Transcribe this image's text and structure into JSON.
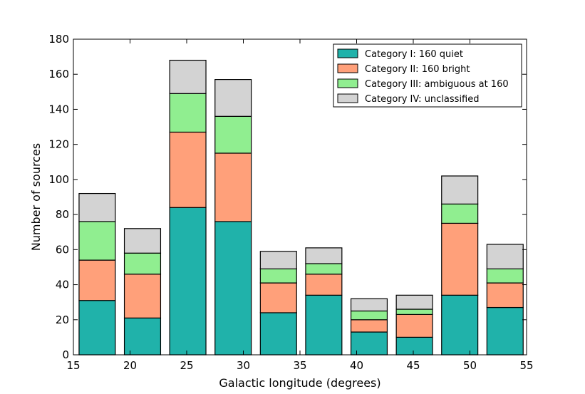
{
  "chart_data": {
    "type": "bar",
    "stacked": true,
    "xlabel": "Galactic longitude (degrees)",
    "ylabel": "Number of sources",
    "xlim": [
      15,
      55
    ],
    "ylim": [
      0,
      180
    ],
    "xticks": [
      15,
      20,
      25,
      30,
      35,
      40,
      45,
      50,
      55
    ],
    "yticks": [
      0,
      20,
      40,
      60,
      80,
      100,
      120,
      140,
      160,
      180
    ],
    "grid": false,
    "legend_position": "top-right",
    "bar_left_edges": [
      15.5,
      19.5,
      23.5,
      27.5,
      31.5,
      35.5,
      39.5,
      43.5,
      47.5,
      51.5
    ],
    "bar_width": 3.2,
    "series": [
      {
        "name": "Category I: 160 quiet",
        "color": "#20b2aa",
        "values": [
          31,
          21,
          84,
          76,
          24,
          34,
          13,
          10,
          34,
          27
        ]
      },
      {
        "name": "Category II: 160 bright",
        "color": "#ffa07a",
        "values": [
          23,
          25,
          43,
          39,
          17,
          12,
          7,
          13,
          41,
          14
        ]
      },
      {
        "name": "Category III: ambiguous at 160",
        "color": "#90ee90",
        "values": [
          22,
          12,
          22,
          21,
          8,
          6,
          5,
          3,
          11,
          8
        ]
      },
      {
        "name": "Category IV: unclassified",
        "color": "#d3d3d3",
        "values": [
          16,
          14,
          19,
          21,
          10,
          9,
          7,
          8,
          16,
          14
        ]
      }
    ]
  }
}
